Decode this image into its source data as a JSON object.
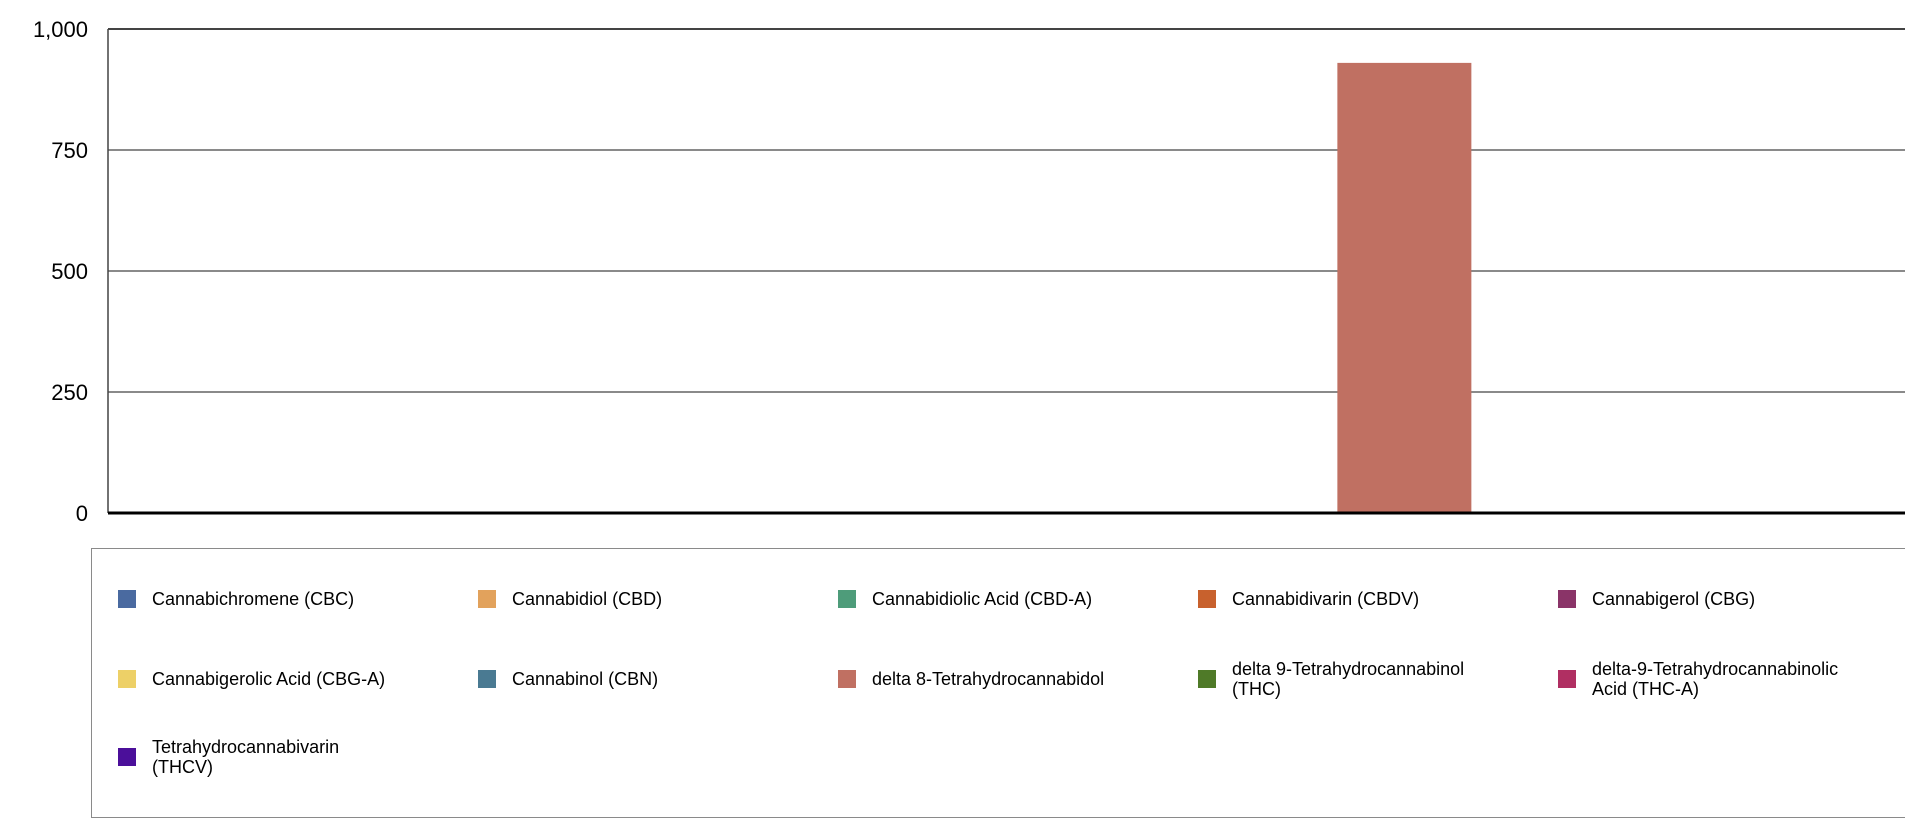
{
  "chart_data": {
    "type": "bar",
    "title": "",
    "xlabel": "",
    "ylabel": "",
    "ylim": [
      0,
      1000
    ],
    "yticks": [
      "0",
      "250",
      "500",
      "750",
      "1,000"
    ],
    "ytick_values": [
      0,
      250,
      500,
      750,
      1000
    ],
    "grid": true,
    "legend_position": "bottom",
    "series": [
      {
        "name": "Cannabichromene (CBC)",
        "color": "#4a6aa0",
        "value": 0
      },
      {
        "name": "Cannabidiol (CBD)",
        "color": "#e2a25c",
        "value": 0
      },
      {
        "name": "Cannabidiolic Acid (CBD-A)",
        "color": "#4e9c7a",
        "value": 0
      },
      {
        "name": "Cannabidivarin (CBDV)",
        "color": "#c8612d",
        "value": 0
      },
      {
        "name": "Cannabigerol (CBG)",
        "color": "#8a3468",
        "value": 0
      },
      {
        "name": "Cannabigerolic Acid (CBG-A)",
        "color": "#edd067",
        "value": 0
      },
      {
        "name": "Cannabinol (CBN)",
        "color": "#4a7a92",
        "value": 0
      },
      {
        "name": "delta 8-Tetrahydrocannabidol",
        "color": "#c07062",
        "value": 930
      },
      {
        "name": "delta 9-Tetrahydrocannabinol\n(THC)",
        "color": "#4f7a28",
        "value": 0
      },
      {
        "name": "delta-9-Tetrahydrocannabinolic\nAcid (THC-A)",
        "color": "#b02f62",
        "value": 0
      },
      {
        "name": "Tetrahydrocannabivarin\n(THCV)",
        "color": "#4b0f9a",
        "value": 0
      }
    ]
  }
}
